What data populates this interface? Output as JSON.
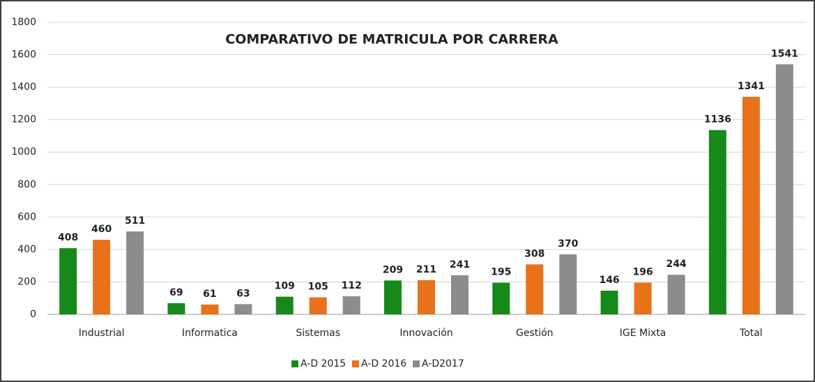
{
  "chart_data": {
    "type": "bar",
    "title": "COMPARATIVO DE MATRICULA POR CARRERA",
    "categories": [
      "Industrial",
      "Informatica",
      "Sistemas",
      "Innovación",
      "Gestión",
      "IGE Mixta",
      "Total"
    ],
    "series": [
      {
        "name": "A-D 2015",
        "color": "#16891a",
        "values": [
          408,
          69,
          109,
          209,
          195,
          146,
          1136
        ]
      },
      {
        "name": "A-D 2016",
        "color": "#e8721a",
        "values": [
          460,
          61,
          105,
          211,
          308,
          196,
          1341
        ]
      },
      {
        "name": "A-D2017",
        "color": "#8c8c8c",
        "values": [
          511,
          63,
          112,
          241,
          370,
          244,
          1541
        ]
      }
    ],
    "ylim": [
      0,
      1800
    ],
    "yticks": [
      0,
      200,
      400,
      600,
      800,
      1000,
      1200,
      1400,
      1600,
      1800
    ],
    "grid": true,
    "legend": "bottom"
  }
}
